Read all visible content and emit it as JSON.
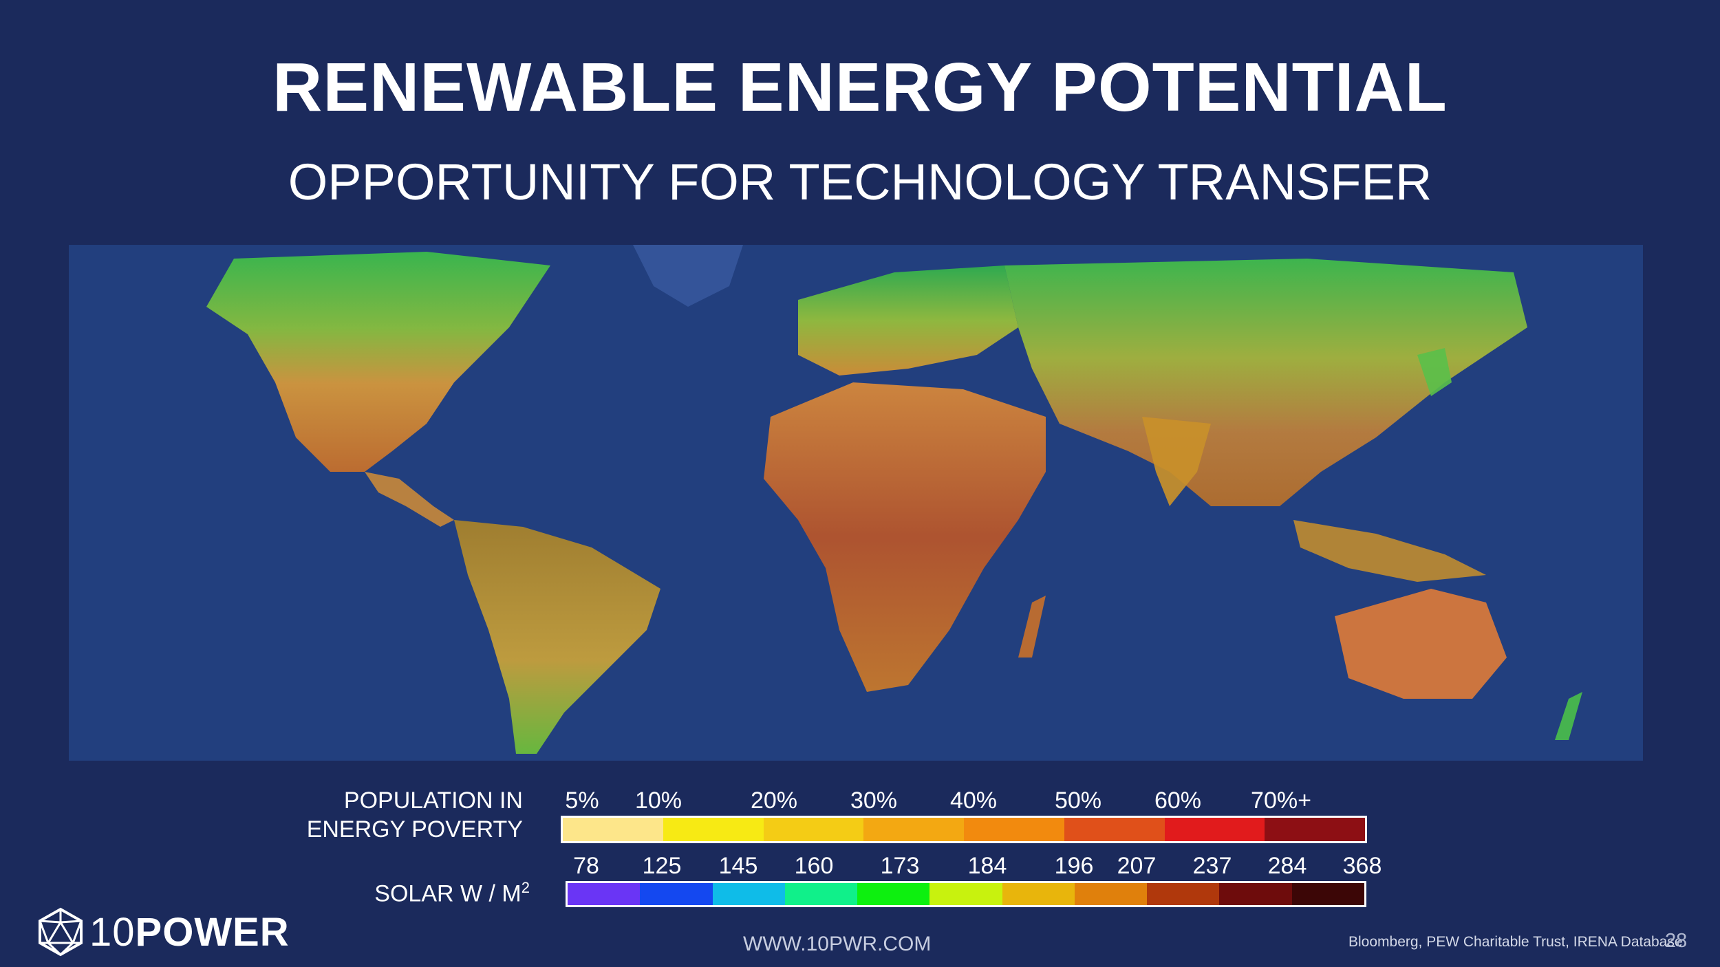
{
  "title": "RENEWABLE ENERGY POTENTIAL",
  "subtitle": "OPPORTUNITY FOR TECHNOLOGY TRANSFER",
  "map": {
    "description_colors": {
      "ocean": "#1e3a78",
      "high_solar": "#c9531e",
      "mid_solar": "#d98a2a",
      "low_solar": "#3bbf4a"
    }
  },
  "legend": {
    "poverty": {
      "label_line1": "POPULATION IN",
      "label_line2": "ENERGY POVERTY",
      "ticks": [
        "5%",
        "10%",
        "20%",
        "30%",
        "40%",
        "50%",
        "60%",
        "70%+"
      ],
      "colors": [
        "#fde68a",
        "#f7ea14",
        "#f4cc15",
        "#f3a812",
        "#f28a0e",
        "#e0501a",
        "#e11b1c",
        "#8d0f14"
      ]
    },
    "solar": {
      "label": "SOLAR  W / M",
      "label_sup": "2",
      "ticks": [
        "78",
        "125",
        "145",
        "160",
        "173",
        "184",
        "196",
        "207",
        "237",
        "284",
        "368"
      ],
      "colors": [
        "#6a35f5",
        "#1448f0",
        "#0fbce8",
        "#10f08a",
        "#0df00f",
        "#c8f20e",
        "#e8b50c",
        "#e0800c",
        "#b0380c",
        "#6e0c0c",
        "#3c0606"
      ]
    }
  },
  "footer": {
    "logo_number": "10",
    "logo_word": "POWER",
    "url": "WWW.10PWR.COM",
    "source": "Bloomberg, PEW Charitable Trust, IRENA Database",
    "page_number": "28"
  }
}
